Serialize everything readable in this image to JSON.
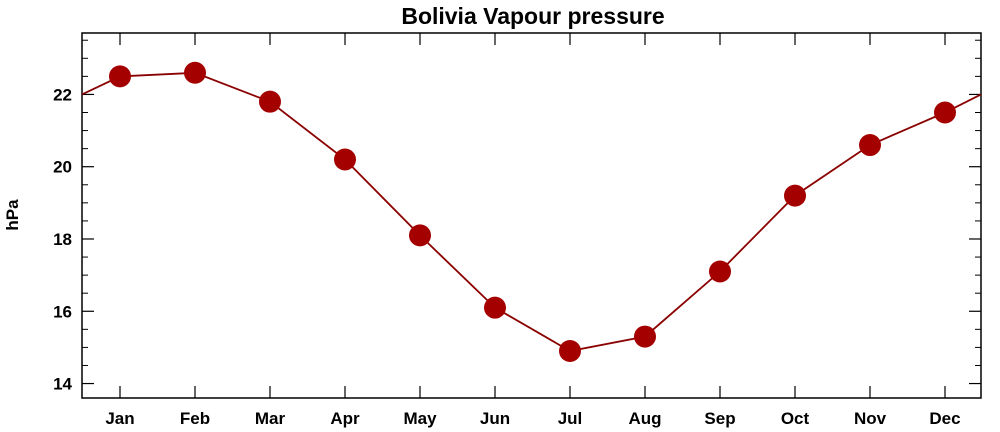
{
  "chart_data": {
    "type": "line",
    "title": "Bolivia Vapour pressure",
    "xlabel": "",
    "ylabel": "hPa",
    "categories": [
      "Jan",
      "Feb",
      "Mar",
      "Apr",
      "May",
      "Jun",
      "Jul",
      "Aug",
      "Sep",
      "Oct",
      "Nov",
      "Dec"
    ],
    "series": [
      {
        "values": [
          22.5,
          22.6,
          21.8,
          20.2,
          18.1,
          16.1,
          14.9,
          15.3,
          17.1,
          19.2,
          20.6,
          21.5
        ]
      }
    ],
    "line_ends": {
      "start": 22.0,
      "end": 22.0
    },
    "ylim": [
      13.6,
      23.7
    ],
    "yticks": [
      14,
      16,
      18,
      20,
      22
    ],
    "ytick_labels": [
      "14",
      "16",
      "18",
      "20",
      "22"
    ],
    "grid": false,
    "legend": "none",
    "colors": {
      "line": "#8b0000",
      "marker": "#a50000",
      "axis": "#000000"
    }
  }
}
